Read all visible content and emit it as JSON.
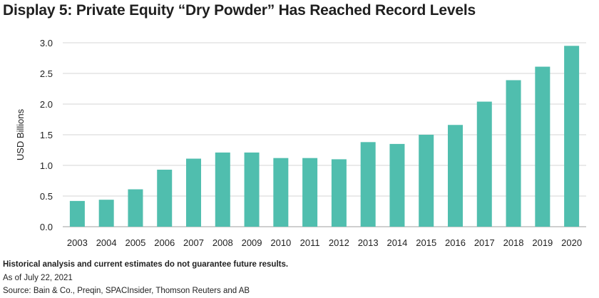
{
  "chart_data": {
    "type": "bar",
    "title": "Display 5: Private Equity “Dry Powder” Has Reached Record Levels",
    "xlabel": "",
    "ylabel": "USD Billions",
    "ylim": [
      0,
      3.0
    ],
    "yticks": [
      "0.0",
      "0.5",
      "1.0",
      "1.5",
      "2.0",
      "2.5",
      "3.0"
    ],
    "grid": true,
    "categories": [
      "2003",
      "2004",
      "2005",
      "2006",
      "2007",
      "2008",
      "2009",
      "2010",
      "2011",
      "2012",
      "2013",
      "2014",
      "2015",
      "2016",
      "2017",
      "2018",
      "2019",
      "2020"
    ],
    "values": [
      0.42,
      0.44,
      0.61,
      0.93,
      1.11,
      1.21,
      1.21,
      1.12,
      1.12,
      1.1,
      1.38,
      1.35,
      1.5,
      1.66,
      2.04,
      2.39,
      2.61,
      2.95
    ],
    "bar_color": "#50BEAE"
  },
  "footnotes": {
    "disclaimer": "Historical analysis and current estimates do not guarantee future results.",
    "as_of": "As of July 22, 2021",
    "source": "Source: Bain & Co., Preqin, SPACInsider, Thomson Reuters and AB"
  }
}
